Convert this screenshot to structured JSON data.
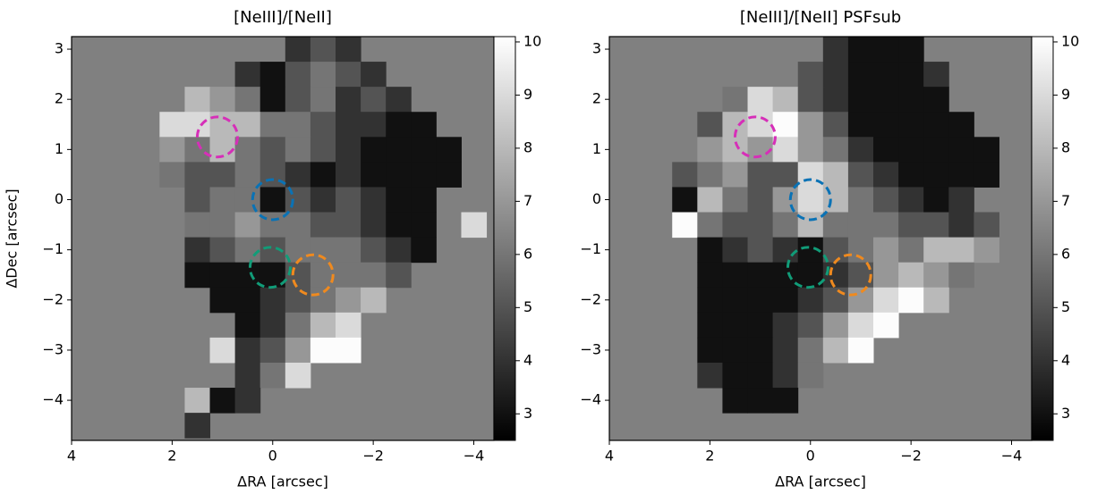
{
  "chart_data": [
    {
      "type": "heatmap",
      "title": "[NeIII]/[NeII]",
      "x_label": "ΔRA [arcsec]",
      "y_label": "ΔDec [arcsec]",
      "colormap": "gray",
      "null_color": "#808080",
      "x": [
        2.5,
        2,
        1.5,
        1,
        0.5,
        0,
        -0.5,
        -1,
        -1.5,
        -2,
        -2.5,
        -3,
        -3.5,
        -4
      ],
      "y": [
        3,
        2.5,
        2,
        1.5,
        1,
        0.5,
        0,
        -0.5,
        -1,
        -1.5,
        -2,
        -2.5,
        -3,
        -3.5,
        -4,
        -4.5
      ],
      "z": [
        [
          null,
          null,
          null,
          null,
          null,
          null,
          4,
          5,
          4,
          null,
          null,
          null,
          null,
          null
        ],
        [
          null,
          null,
          null,
          null,
          4,
          3,
          5,
          6,
          5,
          4,
          null,
          null,
          null,
          null
        ],
        [
          null,
          null,
          8,
          7,
          6,
          3,
          5,
          6,
          4,
          5,
          4,
          null,
          null,
          null
        ],
        [
          null,
          9,
          9,
          8,
          8,
          6,
          6,
          5,
          4,
          4,
          3,
          3,
          null,
          null
        ],
        [
          null,
          7,
          6,
          8,
          6,
          5,
          6,
          5,
          4,
          3,
          3,
          3,
          3,
          null
        ],
        [
          null,
          6,
          5,
          5,
          6,
          5,
          4,
          3,
          4,
          3,
          3,
          3,
          3,
          null
        ],
        [
          null,
          null,
          5,
          6,
          6,
          3,
          5,
          4,
          5,
          4,
          3,
          3,
          null,
          null
        ],
        [
          null,
          null,
          6,
          6,
          7,
          6,
          6,
          5,
          5,
          4,
          3,
          3,
          null,
          9
        ],
        [
          null,
          null,
          4,
          5,
          6,
          5,
          6,
          6,
          6,
          5,
          4,
          3,
          null,
          null
        ],
        [
          null,
          null,
          3,
          3,
          3,
          3,
          5,
          6,
          6,
          6,
          5,
          null,
          null,
          null
        ],
        [
          null,
          null,
          null,
          3,
          3,
          4,
          5,
          6,
          7,
          8,
          null,
          null,
          null,
          null
        ],
        [
          null,
          null,
          null,
          null,
          3,
          4,
          6,
          8,
          9,
          null,
          null,
          null,
          null,
          null
        ],
        [
          null,
          null,
          null,
          9,
          4,
          5,
          7,
          10,
          10,
          null,
          null,
          null,
          null,
          null
        ],
        [
          null,
          null,
          null,
          null,
          4,
          6,
          9,
          null,
          null,
          null,
          null,
          null,
          null,
          null
        ],
        [
          null,
          null,
          8,
          3,
          4,
          null,
          null,
          null,
          null,
          null,
          null,
          null,
          null,
          null
        ],
        [
          null,
          null,
          4,
          null,
          null,
          null,
          null,
          null,
          null,
          null,
          null,
          null,
          null,
          null
        ]
      ],
      "xlim": [
        4,
        -4.4
      ],
      "ylim": [
        -4.8,
        3.25
      ],
      "xticks": [
        4,
        2,
        0,
        {
          "value": -2,
          "label": "−2"
        },
        {
          "value": -4,
          "label": "−4"
        }
      ],
      "yticks": [
        3,
        2,
        1,
        0,
        {
          "value": -1,
          "label": "−1"
        },
        {
          "value": -2,
          "label": "−2"
        },
        {
          "value": -3,
          "label": "−3"
        },
        {
          "value": -4,
          "label": "−4"
        }
      ],
      "clim": [
        2.5,
        10.1
      ],
      "cticks": [
        3,
        4,
        5,
        6,
        7,
        8,
        9,
        10
      ],
      "circles": [
        {
          "x": 1.1,
          "y": 1.25,
          "r": 0.4,
          "color": "#d62fb8"
        },
        {
          "x": 0,
          "y": 0,
          "r": 0.4,
          "color": "#0a72b5"
        },
        {
          "x": 0.05,
          "y": -1.35,
          "r": 0.4,
          "color": "#119c78"
        },
        {
          "x": -0.8,
          "y": -1.5,
          "r": 0.4,
          "color": "#ef8a1f"
        }
      ]
    },
    {
      "type": "heatmap",
      "title": "[NeIII]/[NeII] PSFsub",
      "x_label": "ΔRA [arcsec]",
      "colormap": "gray",
      "null_color": "#808080",
      "x": [
        2.5,
        2,
        1.5,
        1,
        0.5,
        0,
        -0.5,
        -1,
        -1.5,
        -2,
        -2.5,
        -3,
        -3.5,
        -4
      ],
      "y": [
        3,
        2.5,
        2,
        1.5,
        1,
        0.5,
        0,
        -0.5,
        -1,
        -1.5,
        -2,
        -2.5,
        -3,
        -3.5,
        -4,
        -4.5
      ],
      "z": [
        [
          null,
          null,
          null,
          null,
          null,
          null,
          4,
          3,
          3,
          3,
          null,
          null,
          null,
          null
        ],
        [
          null,
          null,
          null,
          null,
          null,
          5,
          4,
          3,
          3,
          3,
          4,
          null,
          null,
          null
        ],
        [
          null,
          null,
          6,
          9,
          8,
          5,
          4,
          3,
          3,
          3,
          3,
          null,
          null,
          null
        ],
        [
          null,
          5,
          8,
          9,
          10,
          7,
          5,
          3,
          3,
          3,
          3,
          3,
          null,
          null
        ],
        [
          null,
          7,
          8,
          7,
          9,
          7,
          6,
          4,
          3,
          3,
          3,
          3,
          3,
          null
        ],
        [
          5,
          6,
          7,
          5,
          5,
          9,
          8,
          5,
          4,
          3,
          3,
          3,
          3,
          null
        ],
        [
          3,
          8,
          6,
          5,
          7,
          9,
          8,
          6,
          5,
          4,
          3,
          4,
          null,
          null
        ],
        [
          10,
          6,
          5,
          5,
          6,
          8,
          6,
          6,
          6,
          5,
          5,
          4,
          5,
          null
        ],
        [
          null,
          3,
          4,
          5,
          4,
          3,
          5,
          6,
          7,
          6,
          8,
          8,
          7,
          null
        ],
        [
          null,
          3,
          3,
          3,
          3,
          3,
          4,
          5,
          7,
          8,
          7,
          6,
          null,
          null
        ],
        [
          null,
          3,
          3,
          3,
          3,
          4,
          5,
          7,
          9,
          10,
          8,
          null,
          null,
          null
        ],
        [
          null,
          3,
          3,
          3,
          4,
          5,
          7,
          9,
          10,
          null,
          null,
          null,
          null,
          null
        ],
        [
          null,
          3,
          3,
          3,
          4,
          6,
          8,
          10,
          null,
          null,
          null,
          null,
          null,
          null
        ],
        [
          null,
          4,
          3,
          3,
          4,
          6,
          null,
          null,
          null,
          null,
          null,
          null,
          null,
          null
        ],
        [
          null,
          null,
          3,
          3,
          3,
          null,
          null,
          null,
          null,
          null,
          null,
          null,
          null,
          null
        ],
        [
          null,
          null,
          null,
          null,
          null,
          null,
          null,
          null,
          null,
          null,
          null,
          null,
          null,
          null
        ]
      ],
      "xlim": [
        4,
        -4.4
      ],
      "ylim": [
        -4.8,
        3.25
      ],
      "xticks": [
        4,
        2,
        0,
        {
          "value": -2,
          "label": "−2"
        },
        {
          "value": -4,
          "label": "−4"
        }
      ],
      "yticks": [
        3,
        2,
        1,
        0,
        {
          "value": -1,
          "label": "−1"
        },
        {
          "value": -2,
          "label": "−2"
        },
        {
          "value": -3,
          "label": "−3"
        },
        {
          "value": -4,
          "label": "−4"
        }
      ],
      "clim": [
        2.5,
        10.1
      ],
      "cticks": [
        3,
        4,
        5,
        6,
        7,
        8,
        9,
        10
      ],
      "circles": [
        {
          "x": 1.1,
          "y": 1.25,
          "r": 0.4,
          "color": "#d62fb8"
        },
        {
          "x": 0,
          "y": 0,
          "r": 0.4,
          "color": "#0a72b5"
        },
        {
          "x": 0.05,
          "y": -1.35,
          "r": 0.4,
          "color": "#119c78"
        },
        {
          "x": -0.8,
          "y": -1.5,
          "r": 0.4,
          "color": "#ef8a1f"
        }
      ]
    }
  ]
}
